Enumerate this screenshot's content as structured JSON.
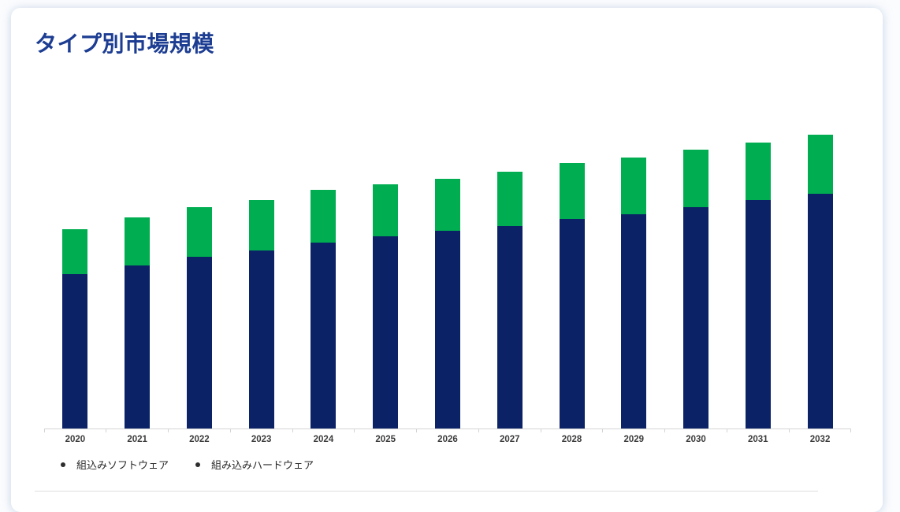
{
  "card": {
    "title": "タイプ別市場規模"
  },
  "chart_data": {
    "type": "bar",
    "stacked": true,
    "title": "タイプ別市場規模",
    "xlabel": "",
    "ylabel": "",
    "categories": [
      "2020",
      "2021",
      "2022",
      "2023",
      "2024",
      "2025",
      "2026",
      "2027",
      "2028",
      "2029",
      "2030",
      "2031",
      "2032"
    ],
    "series": [
      {
        "name": "組込みソフトウェア",
        "color": "#0b2366",
        "values": [
          196,
          207,
          218,
          226,
          236,
          244,
          251,
          257,
          266,
          272,
          281,
          290,
          298
        ]
      },
      {
        "name": "組み込みハードウェア",
        "color": "#00ad50",
        "values": [
          57,
          61,
          63,
          64,
          67,
          66,
          66,
          69,
          71,
          72,
          73,
          73,
          75
        ]
      }
    ],
    "ylim": [
      0,
      455
    ],
    "value_units": "relative (no y-axis scale shown in chart)",
    "grid": false,
    "y_axis_labels_visible": false,
    "legend_position": "bottom-left"
  },
  "colors": {
    "title": "#1c3d92",
    "axis": "#d4d4d4",
    "tick_label": "#3c3c3c",
    "legend_bullet": "#2d2d2d",
    "legend_text": "#2b2b2b",
    "divider": "#dedede",
    "card_bg": "#ffffff",
    "page_bg": "#fbfcfe"
  }
}
